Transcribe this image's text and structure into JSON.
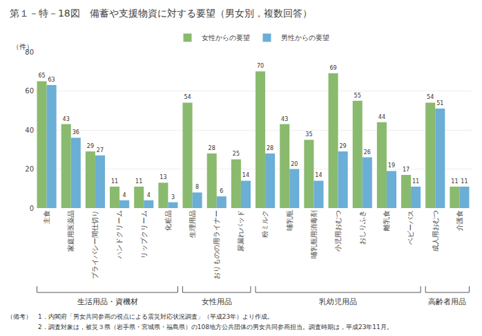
{
  "chart_data": {
    "type": "bar",
    "title": "第１－特－18図　備蓄や支援物資に対する要望（男女別，複数回答）",
    "ylabel": "（件）",
    "categories": [
      "主食",
      "家庭用医薬品",
      "プライバシー間仕切り",
      "ハンドクリーム",
      "リップクリーム",
      "化粧品",
      "生理用品",
      "おりものの用ライナー",
      "尿漏れパッド",
      "粉ミルク",
      "哺乳瓶",
      "哺乳瓶用消毒剤",
      "小児用おむつ",
      "おしりふき",
      "離乳食",
      "ベビーバス",
      "成人用おむつ",
      "介護食"
    ],
    "series": [
      {
        "name": "女性からの要望",
        "color": "#8aba6e",
        "values": [
          65,
          43,
          29,
          11,
          11,
          13,
          54,
          28,
          25,
          70,
          43,
          35,
          69,
          55,
          44,
          17,
          54,
          11
        ]
      },
      {
        "name": "男性からの要望",
        "color": "#6baed6",
        "values": [
          63,
          36,
          27,
          4,
          4,
          3,
          8,
          6,
          14,
          28,
          20,
          14,
          29,
          26,
          19,
          11,
          51,
          11
        ]
      }
    ],
    "groups": [
      {
        "label": "生活用品・資機材",
        "from": "主食",
        "to": "化粧品"
      },
      {
        "label": "女性用品",
        "from": "生理用品",
        "to": "尿漏れパッド"
      },
      {
        "label": "乳幼児用品",
        "from": "粉ミルク",
        "to": "ベビーバス"
      },
      {
        "label": "高齢者用品",
        "from": "成人用おむつ",
        "to": "介護食"
      }
    ],
    "annotations": [
      "（備考）　1．内閣府「男女共同参画の視点による震災対応状況調査」（平成23年）より作成。",
      "　　　　　2．調査対象は，被災３県（岩手県・宮城県・福島県）の108地方公共団体の男女共同参画担当。調査時期は，平成23年11月。"
    ],
    "ylim": [
      0,
      80
    ],
    "yticks": [
      0,
      20,
      40,
      60,
      80
    ],
    "grid": true,
    "legend": "upper center",
    "data_labels": true
  }
}
